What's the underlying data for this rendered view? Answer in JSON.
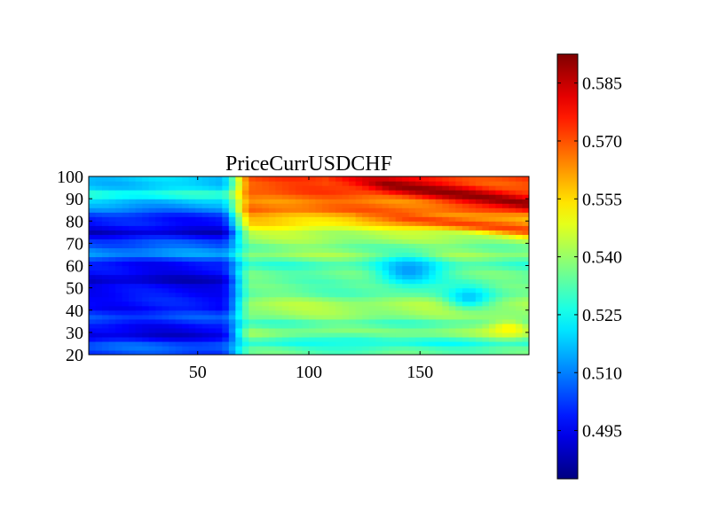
{
  "chart_data": {
    "type": "heatmap",
    "title": "PriceCurrUSDCHF",
    "xlabel": "",
    "ylabel": "",
    "xlim": [
      1,
      199
    ],
    "ylim": [
      20,
      100
    ],
    "x_ticks": [
      50,
      100,
      150
    ],
    "y_ticks": [
      20,
      30,
      40,
      50,
      60,
      70,
      80,
      90,
      100
    ],
    "colormap": "jet",
    "colorbar": {
      "range": [
        0.4825,
        0.5925
      ],
      "ticks": [
        0.495,
        0.51,
        0.525,
        0.54,
        0.555,
        0.57,
        0.585
      ],
      "tick_labels": [
        "0.495",
        "0.510",
        "0.525",
        "0.540",
        "0.555",
        "0.570",
        "0.585"
      ],
      "placement": "right"
    },
    "grid": false,
    "value_model": {
      "x_columns": 66,
      "y_rows": 40,
      "region_breaks_x": [
        60,
        75
      ],
      "left_region": {
        "x_range": [
          1,
          60
        ],
        "base": 0.504,
        "y_profile": [
          {
            "y": 20,
            "v": 0.503
          },
          {
            "y": 25,
            "v": 0.506
          },
          {
            "y": 29,
            "v": 0.49
          },
          {
            "y": 33,
            "v": 0.498
          },
          {
            "y": 38,
            "v": 0.504
          },
          {
            "y": 42,
            "v": 0.496
          },
          {
            "y": 47,
            "v": 0.499
          },
          {
            "y": 53,
            "v": 0.491
          },
          {
            "y": 58,
            "v": 0.495
          },
          {
            "y": 62,
            "v": 0.5
          },
          {
            "y": 66,
            "v": 0.514
          },
          {
            "y": 70,
            "v": 0.505
          },
          {
            "y": 75,
            "v": 0.492
          },
          {
            "y": 80,
            "v": 0.498
          },
          {
            "y": 84,
            "v": 0.505
          },
          {
            "y": 88,
            "v": 0.516
          },
          {
            "y": 92,
            "v": 0.528
          },
          {
            "y": 95,
            "v": 0.52
          },
          {
            "y": 100,
            "v": 0.516
          }
        ]
      },
      "right_region": {
        "x_range": [
          75,
          199
        ],
        "base": 0.534,
        "y_profile": [
          {
            "y": 20,
            "v": 0.536
          },
          {
            "y": 25,
            "v": 0.527
          },
          {
            "y": 30,
            "v": 0.54
          },
          {
            "y": 35,
            "v": 0.532
          },
          {
            "y": 40,
            "v": 0.544
          },
          {
            "y": 45,
            "v": 0.538
          },
          {
            "y": 50,
            "v": 0.532
          },
          {
            "y": 55,
            "v": 0.536
          },
          {
            "y": 60,
            "v": 0.53
          },
          {
            "y": 65,
            "v": 0.539
          },
          {
            "y": 70,
            "v": 0.537
          },
          {
            "y": 75,
            "v": 0.545
          },
          {
            "y": 80,
            "v": 0.555
          },
          {
            "y": 85,
            "v": 0.566
          },
          {
            "y": 90,
            "v": 0.566
          },
          {
            "y": 95,
            "v": 0.572
          },
          {
            "y": 100,
            "v": 0.57
          }
        ]
      },
      "features": [
        {
          "kind": "ridge",
          "x": [
            110,
            199
          ],
          "y": [
            100,
            88
          ],
          "width": 3.5,
          "peak": 0.591
        },
        {
          "kind": "ridge",
          "x": [
            120,
            199
          ],
          "y": [
            84,
            76
          ],
          "width": 3,
          "peak": 0.572
        },
        {
          "kind": "blob",
          "x": 145,
          "y": 58,
          "rx": 14,
          "ry": 7,
          "value": 0.513
        },
        {
          "kind": "blob",
          "x": 172,
          "y": 46,
          "rx": 10,
          "ry": 5,
          "value": 0.518
        },
        {
          "kind": "blob",
          "x": 120,
          "y": 26,
          "rx": 22,
          "ry": 4,
          "value": 0.527
        },
        {
          "kind": "blob",
          "x": 190,
          "y": 32,
          "rx": 10,
          "ry": 4,
          "value": 0.552
        }
      ]
    }
  }
}
